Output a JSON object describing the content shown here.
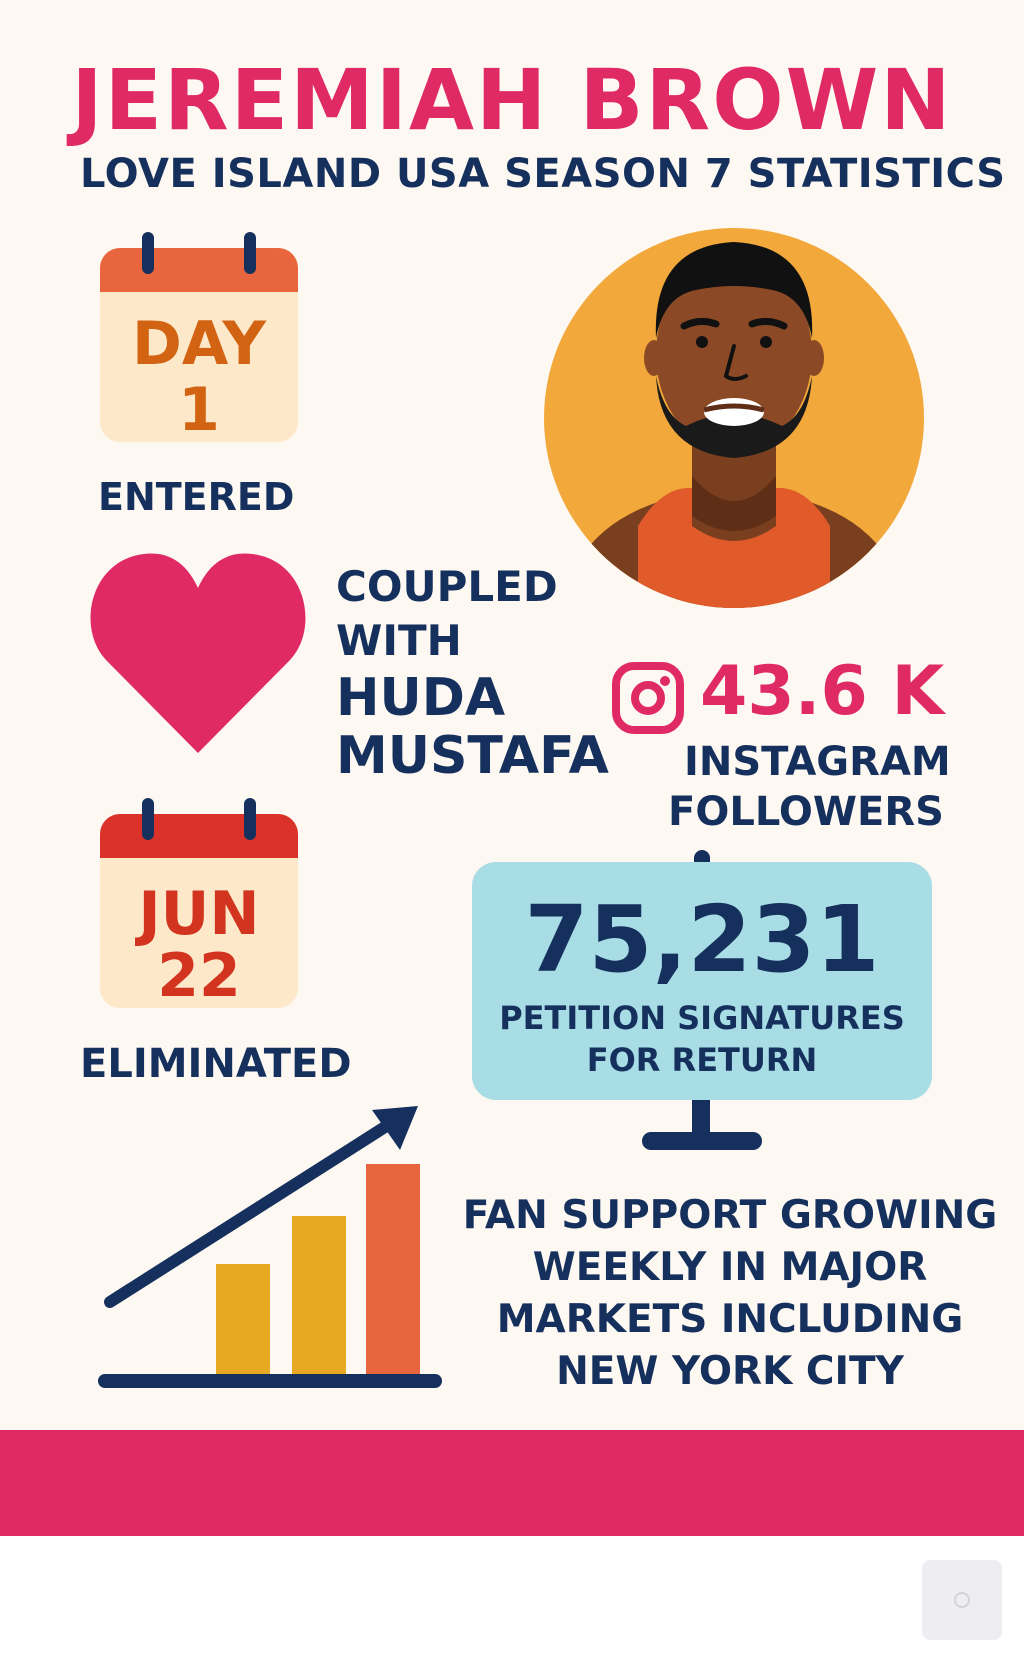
{
  "title": "JEREMIAH BROWN",
  "subtitle": "LOVE ISLAND USA SEASON 7 STATISTICS",
  "entered": {
    "line1": "DAY",
    "line2": "1",
    "label": "ENTERED"
  },
  "coupled": {
    "line1": "COUPLED",
    "line2": "WITH",
    "name1": "HUDA",
    "name2": "MUSTAFA"
  },
  "eliminated": {
    "line1": "JUN",
    "line2": "22",
    "label": "ELIMINATED"
  },
  "instagram": {
    "count": "43.6 K",
    "label1": "INSTAGRAM",
    "label2": "FOLLOWERS",
    "icon": "instagram-icon"
  },
  "petition": {
    "count": "75,231",
    "label1": "PETITION SIGNATURES",
    "label2": "FOR RETURN"
  },
  "fan_support": {
    "text": "FAN SUPPORT GROWING WEEKLY IN MAJOR MARKETS INCLUDING NEW YORK CITY"
  },
  "icons": [
    "calendar-icon",
    "heart-icon",
    "instagram-icon",
    "bar-chart-icon",
    "trend-arrow-icon",
    "person-portrait"
  ],
  "colors": {
    "pink": "#e02a66",
    "navy": "#15305c",
    "background": "#fdf8f2",
    "orange": "#f2a83a",
    "light_blue": "#a8dde6"
  }
}
